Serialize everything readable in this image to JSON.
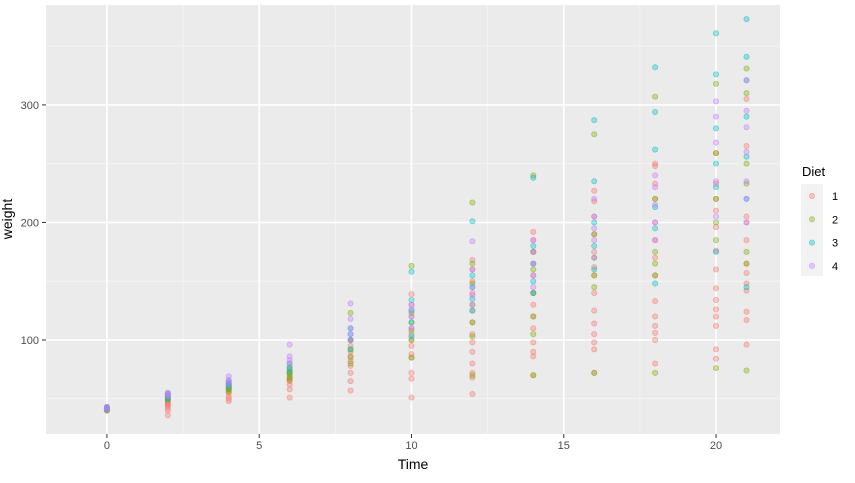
{
  "chart_data": {
    "type": "scatter",
    "title": "",
    "xlabel": "Time",
    "ylabel": "weight",
    "xlim": [
      -2,
      22.1
    ],
    "ylim": [
      20,
      385
    ],
    "x_ticks": [
      0,
      5,
      10,
      15,
      20
    ],
    "y_ticks": [
      100,
      200,
      300
    ],
    "grid": true,
    "legend": {
      "title": "Diet",
      "position": "right"
    },
    "point_alpha": 0.35,
    "series": [
      {
        "name": "1",
        "color": "#F8766D",
        "points": [
          [
            0,
            42
          ],
          [
            0,
            40
          ],
          [
            0,
            43
          ],
          [
            0,
            41
          ],
          [
            0,
            42
          ],
          [
            0,
            41
          ],
          [
            0,
            40
          ],
          [
            0,
            42
          ],
          [
            2,
            36
          ],
          [
            2,
            40
          ],
          [
            2,
            42
          ],
          [
            2,
            45
          ],
          [
            2,
            46
          ],
          [
            2,
            48
          ],
          [
            2,
            49
          ],
          [
            2,
            51
          ],
          [
            2,
            44
          ],
          [
            2,
            47
          ],
          [
            4,
            48
          ],
          [
            4,
            50
          ],
          [
            4,
            52
          ],
          [
            4,
            55
          ],
          [
            4,
            57
          ],
          [
            4,
            59
          ],
          [
            4,
            61
          ],
          [
            4,
            63
          ],
          [
            4,
            58
          ],
          [
            6,
            51
          ],
          [
            6,
            58
          ],
          [
            6,
            62
          ],
          [
            6,
            65
          ],
          [
            6,
            67
          ],
          [
            6,
            70
          ],
          [
            6,
            73
          ],
          [
            6,
            76
          ],
          [
            6,
            68
          ],
          [
            8,
            57
          ],
          [
            8,
            65
          ],
          [
            8,
            72
          ],
          [
            8,
            78
          ],
          [
            8,
            82
          ],
          [
            8,
            85
          ],
          [
            8,
            90
          ],
          [
            8,
            95
          ],
          [
            8,
            100
          ],
          [
            10,
            51
          ],
          [
            10,
            67
          ],
          [
            10,
            72
          ],
          [
            10,
            85
          ],
          [
            10,
            88
          ],
          [
            10,
            95
          ],
          [
            10,
            100
          ],
          [
            10,
            105
          ],
          [
            10,
            110
          ],
          [
            10,
            120
          ],
          [
            10,
            130
          ],
          [
            10,
            139
          ],
          [
            12,
            54
          ],
          [
            12,
            68
          ],
          [
            12,
            72
          ],
          [
            12,
            80
          ],
          [
            12,
            90
          ],
          [
            12,
            98
          ],
          [
            12,
            105
          ],
          [
            12,
            115
          ],
          [
            12,
            125
          ],
          [
            12,
            140
          ],
          [
            12,
            150
          ],
          [
            12,
            160
          ],
          [
            12,
            168
          ],
          [
            14,
            70
          ],
          [
            14,
            86
          ],
          [
            14,
            90
          ],
          [
            14,
            98
          ],
          [
            14,
            110
          ],
          [
            14,
            120
          ],
          [
            14,
            130
          ],
          [
            14,
            140
          ],
          [
            14,
            155
          ],
          [
            14,
            165
          ],
          [
            14,
            175
          ],
          [
            14,
            185
          ],
          [
            14,
            192
          ],
          [
            16,
            72
          ],
          [
            16,
            92
          ],
          [
            16,
            98
          ],
          [
            16,
            105
          ],
          [
            16,
            114
          ],
          [
            16,
            125
          ],
          [
            16,
            140
          ],
          [
            16,
            155
          ],
          [
            16,
            162
          ],
          [
            16,
            175
          ],
          [
            16,
            190
          ],
          [
            16,
            205
          ],
          [
            16,
            218
          ],
          [
            16,
            227
          ],
          [
            18,
            80
          ],
          [
            18,
            100
          ],
          [
            18,
            106
          ],
          [
            18,
            112
          ],
          [
            18,
            120
          ],
          [
            18,
            133
          ],
          [
            18,
            155
          ],
          [
            18,
            170
          ],
          [
            18,
            185
          ],
          [
            18,
            200
          ],
          [
            18,
            220
          ],
          [
            18,
            233
          ],
          [
            18,
            248
          ],
          [
            18,
            250
          ],
          [
            20,
            84
          ],
          [
            20,
            92
          ],
          [
            20,
            112
          ],
          [
            20,
            120
          ],
          [
            20,
            126
          ],
          [
            20,
            134
          ],
          [
            20,
            144
          ],
          [
            20,
            160
          ],
          [
            20,
            176
          ],
          [
            20,
            196
          ],
          [
            20,
            210
          ],
          [
            20,
            220
          ],
          [
            20,
            233
          ],
          [
            20,
            259
          ],
          [
            21,
            96
          ],
          [
            21,
            117
          ],
          [
            21,
            124
          ],
          [
            21,
            142
          ],
          [
            21,
            148
          ],
          [
            21,
            157
          ],
          [
            21,
            165
          ],
          [
            21,
            185
          ],
          [
            21,
            200
          ],
          [
            21,
            205
          ],
          [
            21,
            265
          ],
          [
            21,
            305
          ]
        ]
      },
      {
        "name": "2",
        "color": "#7CAE00",
        "points": [
          [
            0,
            40
          ],
          [
            0,
            42
          ],
          [
            0,
            41
          ],
          [
            0,
            42
          ],
          [
            2,
            49
          ],
          [
            2,
            50
          ],
          [
            2,
            51
          ],
          [
            2,
            53
          ],
          [
            2,
            52
          ],
          [
            4,
            56
          ],
          [
            4,
            58
          ],
          [
            4,
            60
          ],
          [
            4,
            59
          ],
          [
            4,
            62
          ],
          [
            6,
            66
          ],
          [
            6,
            68
          ],
          [
            6,
            72
          ],
          [
            6,
            75
          ],
          [
            6,
            71
          ],
          [
            8,
            80
          ],
          [
            8,
            86
          ],
          [
            8,
            92
          ],
          [
            8,
            100
          ],
          [
            8,
            123
          ],
          [
            10,
            85
          ],
          [
            10,
            100
          ],
          [
            10,
            108
          ],
          [
            10,
            115
          ],
          [
            10,
            123
          ],
          [
            10,
            163
          ],
          [
            12,
            70
          ],
          [
            12,
            103
          ],
          [
            12,
            115
          ],
          [
            12,
            130
          ],
          [
            12,
            148
          ],
          [
            12,
            165
          ],
          [
            12,
            217
          ],
          [
            14,
            70
          ],
          [
            14,
            105
          ],
          [
            14,
            120
          ],
          [
            14,
            140
          ],
          [
            14,
            160
          ],
          [
            14,
            175
          ],
          [
            14,
            240
          ],
          [
            16,
            72
          ],
          [
            16,
            145
          ],
          [
            16,
            155
          ],
          [
            16,
            170
          ],
          [
            16,
            190
          ],
          [
            16,
            275
          ],
          [
            18,
            72
          ],
          [
            18,
            155
          ],
          [
            18,
            165
          ],
          [
            18,
            175
          ],
          [
            18,
            220
          ],
          [
            18,
            307
          ],
          [
            20,
            76
          ],
          [
            20,
            185
          ],
          [
            20,
            200
          ],
          [
            20,
            220
          ],
          [
            20,
            259
          ],
          [
            20,
            318
          ],
          [
            21,
            74
          ],
          [
            21,
            165
          ],
          [
            21,
            175
          ],
          [
            21,
            233
          ],
          [
            21,
            250
          ],
          [
            21,
            310
          ],
          [
            21,
            331
          ]
        ]
      },
      {
        "name": "3",
        "color": "#00BFC4",
        "points": [
          [
            0,
            41
          ],
          [
            0,
            42
          ],
          [
            0,
            43
          ],
          [
            2,
            50
          ],
          [
            2,
            52
          ],
          [
            2,
            53
          ],
          [
            2,
            55
          ],
          [
            4,
            60
          ],
          [
            4,
            62
          ],
          [
            4,
            63
          ],
          [
            4,
            65
          ],
          [
            6,
            73
          ],
          [
            6,
            77
          ],
          [
            6,
            80
          ],
          [
            8,
            92
          ],
          [
            8,
            100
          ],
          [
            8,
            105
          ],
          [
            8,
            110
          ],
          [
            10,
            103
          ],
          [
            10,
            115
          ],
          [
            10,
            125
          ],
          [
            10,
            134
          ],
          [
            10,
            158
          ],
          [
            12,
            125
          ],
          [
            12,
            135
          ],
          [
            12,
            145
          ],
          [
            12,
            155
          ],
          [
            12,
            201
          ],
          [
            14,
            140
          ],
          [
            14,
            150
          ],
          [
            14,
            165
          ],
          [
            14,
            180
          ],
          [
            14,
            238
          ],
          [
            16,
            160
          ],
          [
            16,
            180
          ],
          [
            16,
            200
          ],
          [
            16,
            235
          ],
          [
            16,
            287
          ],
          [
            18,
            148
          ],
          [
            18,
            195
          ],
          [
            18,
            213
          ],
          [
            18,
            262
          ],
          [
            18,
            294
          ],
          [
            18,
            332
          ],
          [
            20,
            175
          ],
          [
            20,
            230
          ],
          [
            20,
            250
          ],
          [
            20,
            280
          ],
          [
            20,
            326
          ],
          [
            20,
            361
          ],
          [
            21,
            145
          ],
          [
            21,
            220
          ],
          [
            21,
            256
          ],
          [
            21,
            290
          ],
          [
            21,
            321
          ],
          [
            21,
            341
          ],
          [
            21,
            373
          ]
        ]
      },
      {
        "name": "4",
        "color": "#C77CFF",
        "points": [
          [
            0,
            41
          ],
          [
            0,
            42
          ],
          [
            0,
            43
          ],
          [
            2,
            52
          ],
          [
            2,
            53
          ],
          [
            2,
            54
          ],
          [
            2,
            55
          ],
          [
            4,
            62
          ],
          [
            4,
            64
          ],
          [
            4,
            66
          ],
          [
            4,
            69
          ],
          [
            6,
            80
          ],
          [
            6,
            83
          ],
          [
            6,
            86
          ],
          [
            6,
            96
          ],
          [
            8,
            100
          ],
          [
            8,
            105
          ],
          [
            8,
            110
          ],
          [
            8,
            118
          ],
          [
            8,
            131
          ],
          [
            10,
            110
          ],
          [
            10,
            120
          ],
          [
            10,
            126
          ],
          [
            10,
            130
          ],
          [
            12,
            130
          ],
          [
            12,
            138
          ],
          [
            12,
            145
          ],
          [
            12,
            160
          ],
          [
            12,
            184
          ],
          [
            14,
            145
          ],
          [
            14,
            155
          ],
          [
            14,
            165
          ],
          [
            14,
            175
          ],
          [
            14,
            185
          ],
          [
            16,
            170
          ],
          [
            16,
            185
          ],
          [
            16,
            195
          ],
          [
            16,
            205
          ],
          [
            16,
            220
          ],
          [
            18,
            185
          ],
          [
            18,
            200
          ],
          [
            18,
            215
          ],
          [
            18,
            230
          ],
          [
            18,
            240
          ],
          [
            20,
            205
          ],
          [
            20,
            235
          ],
          [
            20,
            268
          ],
          [
            20,
            290
          ],
          [
            20,
            303
          ],
          [
            21,
            200
          ],
          [
            21,
            220
          ],
          [
            21,
            235
          ],
          [
            21,
            260
          ],
          [
            21,
            281
          ],
          [
            21,
            295
          ],
          [
            21,
            321
          ]
        ]
      }
    ]
  }
}
